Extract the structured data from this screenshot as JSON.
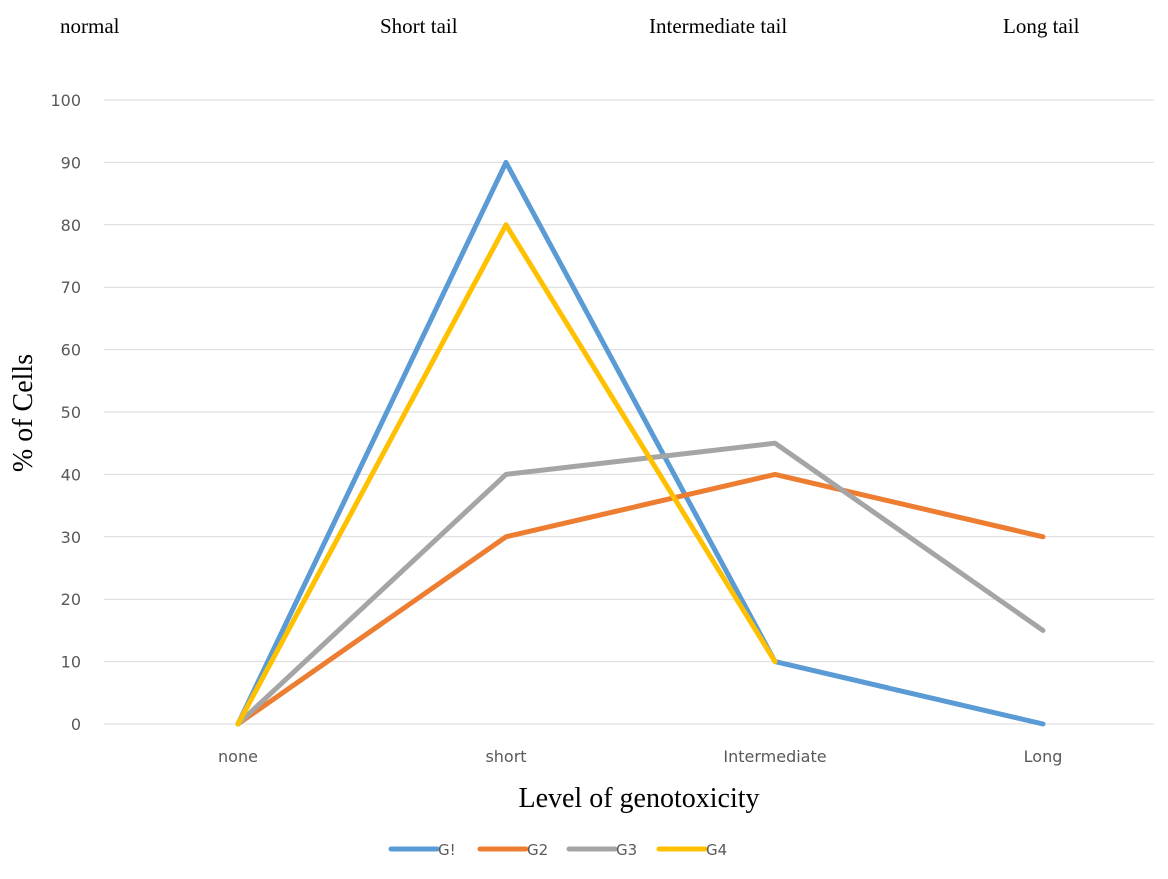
{
  "header_labels": [
    "normal",
    "Short tail",
    "Intermediate tail",
    "Long tail"
  ],
  "chart_data": {
    "type": "line",
    "categories": [
      "none",
      "short",
      "Intermediate",
      "Long"
    ],
    "series": [
      {
        "name": "G!",
        "color": "#5b9bd5",
        "values": [
          0,
          90,
          10,
          0
        ]
      },
      {
        "name": "G2",
        "color": "#ed7d31",
        "values": [
          0,
          30,
          40,
          30
        ]
      },
      {
        "name": "G3",
        "color": "#a5a5a5",
        "values": [
          0,
          40,
          45,
          15
        ]
      },
      {
        "name": "G4",
        "color": "#ffc000",
        "values": [
          0,
          80,
          10,
          null
        ]
      }
    ],
    "title": "",
    "xlabel": "Level of genotoxicity",
    "ylabel": "% of Cells",
    "ylim": [
      0,
      100
    ],
    "yticks": [
      0,
      10,
      20,
      30,
      40,
      50,
      60,
      70,
      80,
      90,
      100
    ],
    "grid": true,
    "legend_position": "bottom"
  }
}
